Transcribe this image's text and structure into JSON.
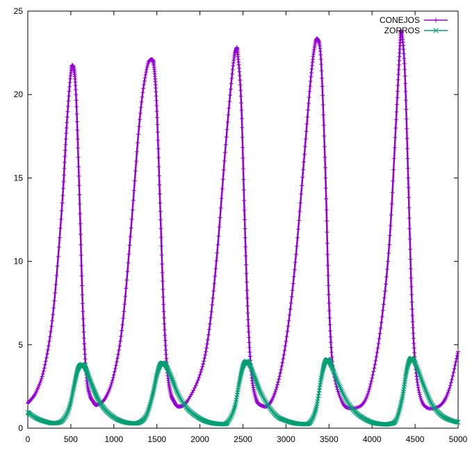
{
  "chart_data": {
    "type": "line",
    "title": "",
    "xlabel": "",
    "ylabel": "",
    "xlim": [
      0,
      5000
    ],
    "ylim": [
      0,
      25
    ],
    "xticks": [
      0,
      500,
      1000,
      1500,
      2000,
      2500,
      3000,
      3500,
      4000,
      4500,
      5000
    ],
    "yticks": [
      0,
      5,
      10,
      15,
      20,
      25
    ],
    "grid": false,
    "legend_position": "top-right",
    "series": [
      {
        "name": "CONEJOS",
        "color": "#9400d3",
        "marker": "plus",
        "x": [
          0,
          100,
          200,
          300,
          400,
          450,
          500,
          530,
          560,
          600,
          640,
          680,
          720,
          760,
          800,
          900,
          1000,
          1100,
          1200,
          1300,
          1380,
          1440,
          1470,
          1500,
          1540,
          1580,
          1620,
          1660,
          1700,
          1750,
          1850,
          2000,
          2100,
          2200,
          2300,
          2380,
          2420,
          2440,
          2480,
          2520,
          2560,
          2600,
          2650,
          2700,
          2800,
          2900,
          3000,
          3100,
          3200,
          3280,
          3330,
          3370,
          3410,
          3460,
          3500,
          3550,
          3650,
          3750,
          3900,
          4000,
          4100,
          4200,
          4280,
          4320,
          4340,
          4380,
          4420,
          4460,
          4500,
          4560,
          4650,
          4800,
          4900,
          5000
        ],
        "y": [
          1.5,
          2.2,
          3.8,
          7.2,
          13.5,
          18.0,
          21.3,
          21.6,
          20.0,
          14.0,
          7.0,
          3.2,
          2.0,
          1.6,
          1.4,
          1.8,
          3.2,
          6.2,
          12.0,
          18.5,
          21.5,
          22.1,
          21.5,
          19.0,
          13.0,
          7.0,
          3.5,
          2.1,
          1.6,
          1.3,
          1.6,
          3.2,
          5.6,
          10.5,
          17.0,
          21.5,
          22.7,
          22.4,
          19.5,
          12.5,
          6.5,
          3.2,
          1.8,
          1.4,
          1.4,
          2.6,
          5.2,
          9.5,
          15.5,
          20.5,
          22.8,
          23.3,
          21.8,
          15.0,
          7.5,
          3.5,
          1.6,
          1.2,
          1.5,
          3.0,
          6.0,
          11.0,
          18.5,
          22.5,
          23.8,
          21.5,
          15.0,
          8.0,
          4.0,
          1.9,
          1.2,
          1.4,
          2.4,
          4.6
        ]
      },
      {
        "name": "ZORROS",
        "color": "#009e73",
        "marker": "cross",
        "x": [
          0,
          100,
          200,
          300,
          400,
          480,
          540,
          580,
          620,
          660,
          700,
          760,
          820,
          900,
          1000,
          1100,
          1200,
          1300,
          1380,
          1450,
          1500,
          1540,
          1580,
          1620,
          1680,
          1750,
          1850,
          1950,
          2050,
          2150,
          2250,
          2320,
          2400,
          2460,
          2500,
          2540,
          2580,
          2640,
          2700,
          2800,
          2900,
          3000,
          3100,
          3200,
          3280,
          3350,
          3410,
          3450,
          3490,
          3530,
          3600,
          3700,
          3800,
          3900,
          4000,
          4100,
          4200,
          4280,
          4350,
          4400,
          4440,
          4480,
          4540,
          4620,
          4700,
          4800,
          4900,
          5000
        ],
        "y": [
          0.95,
          0.6,
          0.4,
          0.3,
          0.45,
          1.2,
          2.6,
          3.5,
          3.8,
          3.7,
          3.2,
          2.4,
          1.7,
          1.1,
          0.65,
          0.4,
          0.3,
          0.35,
          0.8,
          2.0,
          3.2,
          3.8,
          3.9,
          3.6,
          2.9,
          2.0,
          1.2,
          0.75,
          0.45,
          0.3,
          0.25,
          0.35,
          1.2,
          2.8,
          3.7,
          4.0,
          3.8,
          3.0,
          2.2,
          1.3,
          0.7,
          0.45,
          0.3,
          0.25,
          0.35,
          1.2,
          3.0,
          3.9,
          4.1,
          3.7,
          2.8,
          1.7,
          1.0,
          0.6,
          0.35,
          0.25,
          0.25,
          0.5,
          1.8,
          3.4,
          4.1,
          4.1,
          3.4,
          2.3,
          1.4,
          0.8,
          0.5,
          0.35
        ]
      }
    ]
  }
}
